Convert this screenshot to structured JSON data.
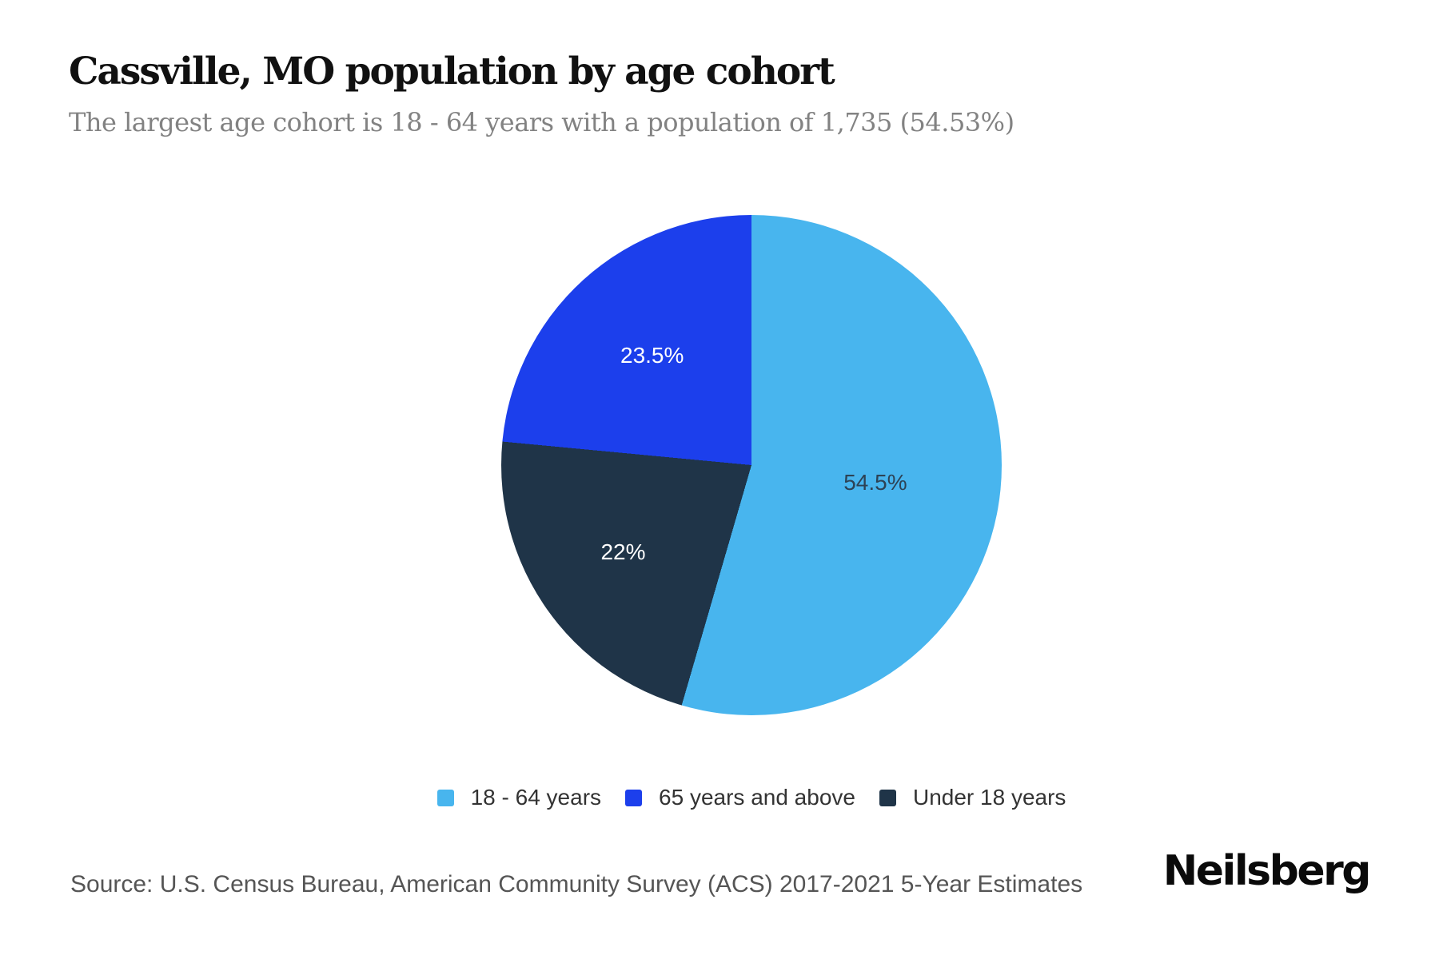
{
  "chart_data": {
    "type": "pie",
    "title": "Cassville, MO population by age cohort",
    "subtitle": "The largest age cohort is 18 - 64 years with a population of 1,735 (54.53%)",
    "unit": "percent",
    "start_angle_deg": 0,
    "direction": "clockwise",
    "slices": [
      {
        "label": "18 - 64 years",
        "value": 54.5,
        "display": "54.5%",
        "color": "#48b5ee",
        "label_color": "#2d4356",
        "label_r_frac": 0.5
      },
      {
        "label": "Under 18 years",
        "value": 22,
        "display": "22%",
        "color": "#1f3448",
        "label_color": "#ffffff",
        "label_r_frac": 0.62
      },
      {
        "label": "65 years and above",
        "value": 23.5,
        "display": "23.5%",
        "color": "#1c3fec",
        "label_color": "#ffffff",
        "label_r_frac": 0.59
      }
    ],
    "legend": {
      "position": "bottom",
      "order": [
        "18 - 64 years",
        "65 years and above",
        "Under 18 years"
      ]
    }
  },
  "footer": {
    "source": "Source: U.S. Census Bureau, American Community Survey (ACS) 2017-2021 5-Year Estimates",
    "brand": "Neilsberg"
  }
}
